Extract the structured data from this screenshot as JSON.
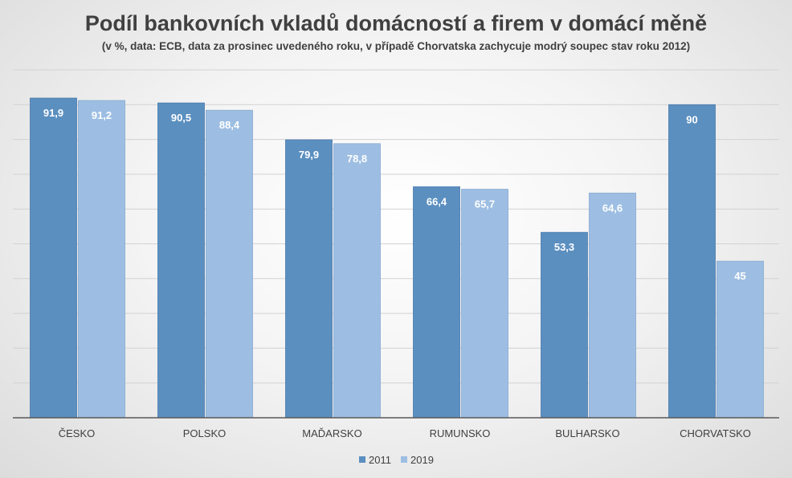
{
  "chart_data": {
    "type": "bar",
    "title": "Podíl bankovních vkladů domácností a firem v domácí měně",
    "subtitle": "(v %, data: ECB, data za prosinec uvedeného roku, v případě Chorvatska zachycuje modrý soupec stav roku 2012)",
    "categories": [
      "ČESKO",
      "POLSKO",
      "MAĎARSKO",
      "RUMUNSKO",
      "BULHARSKO",
      "CHORVATSKO"
    ],
    "series": [
      {
        "name": "2011",
        "color": "#5b8fc0",
        "values": [
          91.9,
          90.5,
          79.9,
          66.4,
          53.3,
          90
        ],
        "labels": [
          "91,9",
          "90,5",
          "79,9",
          "66,4",
          "53,3",
          "90"
        ]
      },
      {
        "name": "2019",
        "color": "#9dbee2",
        "values": [
          91.2,
          88.4,
          78.8,
          65.7,
          64.6,
          45
        ],
        "labels": [
          "91,2",
          "88,4",
          "78,8",
          "65,7",
          "64,6",
          "45"
        ]
      }
    ],
    "ylim": [
      0,
      100
    ],
    "ygrid_step": 10,
    "grid": true,
    "legend": "bottom",
    "xlabel": "",
    "ylabel": ""
  }
}
